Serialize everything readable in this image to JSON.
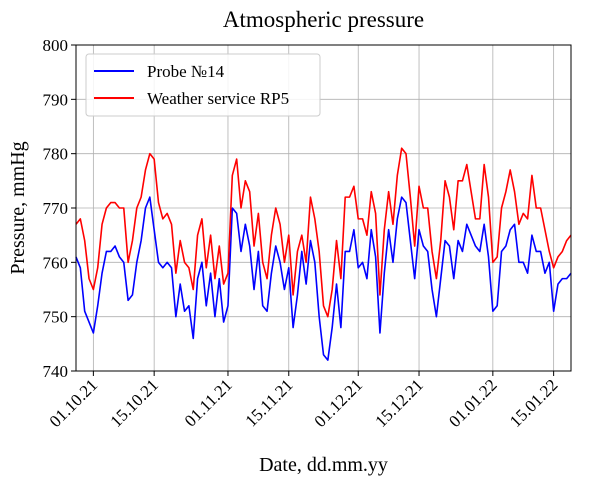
{
  "chart_data": {
    "type": "line",
    "title": "Atmospheric pressure",
    "xlabel": "Date, dd.mm.yy",
    "ylabel": "Pressure, mmHg",
    "xlim": [
      "2021-09-27",
      "2022-01-19"
    ],
    "ylim": [
      740,
      800
    ],
    "yticks": [
      740,
      750,
      760,
      770,
      780,
      790,
      800
    ],
    "xticks": [
      {
        "date": "2021-10-01",
        "label": "01.10.21"
      },
      {
        "date": "2021-10-15",
        "label": "15.10.21"
      },
      {
        "date": "2021-11-01",
        "label": "01.11.21"
      },
      {
        "date": "2021-11-15",
        "label": "15.11.21"
      },
      {
        "date": "2021-12-01",
        "label": "01.12.21"
      },
      {
        "date": "2021-12-15",
        "label": "15.12.21"
      },
      {
        "date": "2022-01-01",
        "label": "01.01.22"
      },
      {
        "date": "2022-01-15",
        "label": "15.01.22"
      }
    ],
    "grid": true,
    "legend_position": "top-left",
    "series": [
      {
        "name": "Probe №14",
        "color": "#0000ff",
        "points": [
          [
            "2021-09-27",
            761
          ],
          [
            "2021-09-28",
            759
          ],
          [
            "2021-09-29",
            751
          ],
          [
            "2021-09-30",
            749
          ],
          [
            "2021-10-01",
            747
          ],
          [
            "2021-10-02",
            752
          ],
          [
            "2021-10-03",
            758
          ],
          [
            "2021-10-04",
            762
          ],
          [
            "2021-10-05",
            762
          ],
          [
            "2021-10-06",
            763
          ],
          [
            "2021-10-07",
            761
          ],
          [
            "2021-10-08",
            760
          ],
          [
            "2021-10-09",
            753
          ],
          [
            "2021-10-10",
            754
          ],
          [
            "2021-10-11",
            760
          ],
          [
            "2021-10-12",
            764
          ],
          [
            "2021-10-13",
            770
          ],
          [
            "2021-10-14",
            772
          ],
          [
            "2021-10-15",
            766
          ],
          [
            "2021-10-16",
            760
          ],
          [
            "2021-10-17",
            759
          ],
          [
            "2021-10-18",
            760
          ],
          [
            "2021-10-19",
            759
          ],
          [
            "2021-10-20",
            750
          ],
          [
            "2021-10-21",
            756
          ],
          [
            "2021-10-22",
            751
          ],
          [
            "2021-10-23",
            752
          ],
          [
            "2021-10-24",
            746
          ],
          [
            "2021-10-25",
            757
          ],
          [
            "2021-10-26",
            760
          ],
          [
            "2021-10-27",
            752
          ],
          [
            "2021-10-28",
            758
          ],
          [
            "2021-10-29",
            750
          ],
          [
            "2021-10-30",
            757
          ],
          [
            "2021-10-31",
            749
          ],
          [
            "2021-11-01",
            752
          ],
          [
            "2021-11-02",
            770
          ],
          [
            "2021-11-03",
            769
          ],
          [
            "2021-11-04",
            762
          ],
          [
            "2021-11-05",
            767
          ],
          [
            "2021-11-06",
            763
          ],
          [
            "2021-11-07",
            755
          ],
          [
            "2021-11-08",
            762
          ],
          [
            "2021-11-09",
            752
          ],
          [
            "2021-11-10",
            751
          ],
          [
            "2021-11-11",
            758
          ],
          [
            "2021-11-12",
            763
          ],
          [
            "2021-11-13",
            760
          ],
          [
            "2021-11-14",
            755
          ],
          [
            "2021-11-15",
            759
          ],
          [
            "2021-11-16",
            748
          ],
          [
            "2021-11-17",
            754
          ],
          [
            "2021-11-18",
            762
          ],
          [
            "2021-11-19",
            756
          ],
          [
            "2021-11-20",
            764
          ],
          [
            "2021-11-21",
            760
          ],
          [
            "2021-11-22",
            750
          ],
          [
            "2021-11-23",
            743
          ],
          [
            "2021-11-24",
            742
          ],
          [
            "2021-11-25",
            748
          ],
          [
            "2021-11-26",
            756
          ],
          [
            "2021-11-27",
            748
          ],
          [
            "2021-11-28",
            762
          ],
          [
            "2021-11-29",
            762
          ],
          [
            "2021-11-30",
            766
          ],
          [
            "2021-12-01",
            759
          ],
          [
            "2021-12-02",
            760
          ],
          [
            "2021-12-03",
            757
          ],
          [
            "2021-12-04",
            766
          ],
          [
            "2021-12-05",
            761
          ],
          [
            "2021-12-06",
            747
          ],
          [
            "2021-12-07",
            758
          ],
          [
            "2021-12-08",
            766
          ],
          [
            "2021-12-09",
            760
          ],
          [
            "2021-12-10",
            768
          ],
          [
            "2021-12-11",
            772
          ],
          [
            "2021-12-12",
            771
          ],
          [
            "2021-12-13",
            764
          ],
          [
            "2021-12-14",
            757
          ],
          [
            "2021-12-15",
            766
          ],
          [
            "2021-12-16",
            763
          ],
          [
            "2021-12-17",
            762
          ],
          [
            "2021-12-18",
            755
          ],
          [
            "2021-12-19",
            750
          ],
          [
            "2021-12-20",
            757
          ],
          [
            "2021-12-21",
            764
          ],
          [
            "2021-12-22",
            763
          ],
          [
            "2021-12-23",
            757
          ],
          [
            "2021-12-24",
            764
          ],
          [
            "2021-12-25",
            762
          ],
          [
            "2021-12-26",
            767
          ],
          [
            "2021-12-27",
            765
          ],
          [
            "2021-12-28",
            763
          ],
          [
            "2021-12-29",
            762
          ],
          [
            "2021-12-30",
            767
          ],
          [
            "2021-12-31",
            761
          ],
          [
            "2022-01-01",
            751
          ],
          [
            "2022-01-02",
            752
          ],
          [
            "2022-01-03",
            762
          ],
          [
            "2022-01-04",
            763
          ],
          [
            "2022-01-05",
            766
          ],
          [
            "2022-01-06",
            767
          ],
          [
            "2022-01-07",
            760
          ],
          [
            "2022-01-08",
            760
          ],
          [
            "2022-01-09",
            758
          ],
          [
            "2022-01-10",
            765
          ],
          [
            "2022-01-11",
            762
          ],
          [
            "2022-01-12",
            762
          ],
          [
            "2022-01-13",
            758
          ],
          [
            "2022-01-14",
            760
          ],
          [
            "2022-01-15",
            751
          ],
          [
            "2022-01-16",
            756
          ],
          [
            "2022-01-17",
            757
          ],
          [
            "2022-01-18",
            757
          ],
          [
            "2022-01-19",
            758
          ]
        ]
      },
      {
        "name": "Weather service RP5",
        "color": "#ff0000",
        "points": [
          [
            "2021-09-27",
            767
          ],
          [
            "2021-09-28",
            768
          ],
          [
            "2021-09-29",
            764
          ],
          [
            "2021-09-30",
            757
          ],
          [
            "2021-10-01",
            755
          ],
          [
            "2021-10-02",
            759
          ],
          [
            "2021-10-03",
            767
          ],
          [
            "2021-10-04",
            770
          ],
          [
            "2021-10-05",
            771
          ],
          [
            "2021-10-06",
            771
          ],
          [
            "2021-10-07",
            770
          ],
          [
            "2021-10-08",
            770
          ],
          [
            "2021-10-09",
            760
          ],
          [
            "2021-10-10",
            764
          ],
          [
            "2021-10-11",
            770
          ],
          [
            "2021-10-12",
            772
          ],
          [
            "2021-10-13",
            777
          ],
          [
            "2021-10-14",
            780
          ],
          [
            "2021-10-15",
            779
          ],
          [
            "2021-10-16",
            771
          ],
          [
            "2021-10-17",
            768
          ],
          [
            "2021-10-18",
            769
          ],
          [
            "2021-10-19",
            767
          ],
          [
            "2021-10-20",
            758
          ],
          [
            "2021-10-21",
            764
          ],
          [
            "2021-10-22",
            760
          ],
          [
            "2021-10-23",
            759
          ],
          [
            "2021-10-24",
            755
          ],
          [
            "2021-10-25",
            765
          ],
          [
            "2021-10-26",
            768
          ],
          [
            "2021-10-27",
            759
          ],
          [
            "2021-10-28",
            765
          ],
          [
            "2021-10-29",
            757
          ],
          [
            "2021-10-30",
            763
          ],
          [
            "2021-10-31",
            756
          ],
          [
            "2021-11-01",
            758
          ],
          [
            "2021-11-02",
            776
          ],
          [
            "2021-11-03",
            779
          ],
          [
            "2021-11-04",
            770
          ],
          [
            "2021-11-05",
            775
          ],
          [
            "2021-11-06",
            773
          ],
          [
            "2021-11-07",
            763
          ],
          [
            "2021-11-08",
            769
          ],
          [
            "2021-11-09",
            760
          ],
          [
            "2021-11-10",
            757
          ],
          [
            "2021-11-11",
            765
          ],
          [
            "2021-11-12",
            770
          ],
          [
            "2021-11-13",
            767
          ],
          [
            "2021-11-14",
            760
          ],
          [
            "2021-11-15",
            765
          ],
          [
            "2021-11-16",
            754
          ],
          [
            "2021-11-17",
            762
          ],
          [
            "2021-11-18",
            765
          ],
          [
            "2021-11-19",
            760
          ],
          [
            "2021-11-20",
            772
          ],
          [
            "2021-11-21",
            768
          ],
          [
            "2021-11-22",
            762
          ],
          [
            "2021-11-23",
            752
          ],
          [
            "2021-11-24",
            750
          ],
          [
            "2021-11-25",
            755
          ],
          [
            "2021-11-26",
            764
          ],
          [
            "2021-11-27",
            757
          ],
          [
            "2021-11-28",
            772
          ],
          [
            "2021-11-29",
            772
          ],
          [
            "2021-11-30",
            774
          ],
          [
            "2021-12-01",
            768
          ],
          [
            "2021-12-02",
            768
          ],
          [
            "2021-12-03",
            765
          ],
          [
            "2021-12-04",
            773
          ],
          [
            "2021-12-05",
            769
          ],
          [
            "2021-12-06",
            754
          ],
          [
            "2021-12-07",
            766
          ],
          [
            "2021-12-08",
            773
          ],
          [
            "2021-12-09",
            767
          ],
          [
            "2021-12-10",
            776
          ],
          [
            "2021-12-11",
            781
          ],
          [
            "2021-12-12",
            780
          ],
          [
            "2021-12-13",
            772
          ],
          [
            "2021-12-14",
            763
          ],
          [
            "2021-12-15",
            774
          ],
          [
            "2021-12-16",
            770
          ],
          [
            "2021-12-17",
            770
          ],
          [
            "2021-12-18",
            762
          ],
          [
            "2021-12-19",
            757
          ],
          [
            "2021-12-20",
            764
          ],
          [
            "2021-12-21",
            775
          ],
          [
            "2021-12-22",
            772
          ],
          [
            "2021-12-23",
            766
          ],
          [
            "2021-12-24",
            775
          ],
          [
            "2021-12-25",
            775
          ],
          [
            "2021-12-26",
            778
          ],
          [
            "2021-12-27",
            773
          ],
          [
            "2021-12-28",
            768
          ],
          [
            "2021-12-29",
            768
          ],
          [
            "2021-12-30",
            778
          ],
          [
            "2021-12-31",
            772
          ],
          [
            "2022-01-01",
            760
          ],
          [
            "2022-01-02",
            761
          ],
          [
            "2022-01-03",
            770
          ],
          [
            "2022-01-04",
            773
          ],
          [
            "2022-01-05",
            777
          ],
          [
            "2022-01-06",
            773
          ],
          [
            "2022-01-07",
            767
          ],
          [
            "2022-01-08",
            769
          ],
          [
            "2022-01-09",
            768
          ],
          [
            "2022-01-10",
            776
          ],
          [
            "2022-01-11",
            770
          ],
          [
            "2022-01-12",
            770
          ],
          [
            "2022-01-13",
            766
          ],
          [
            "2022-01-14",
            762
          ],
          [
            "2022-01-15",
            759
          ],
          [
            "2022-01-16",
            761
          ],
          [
            "2022-01-17",
            762
          ],
          [
            "2022-01-18",
            764
          ],
          [
            "2022-01-19",
            765
          ]
        ]
      }
    ]
  }
}
